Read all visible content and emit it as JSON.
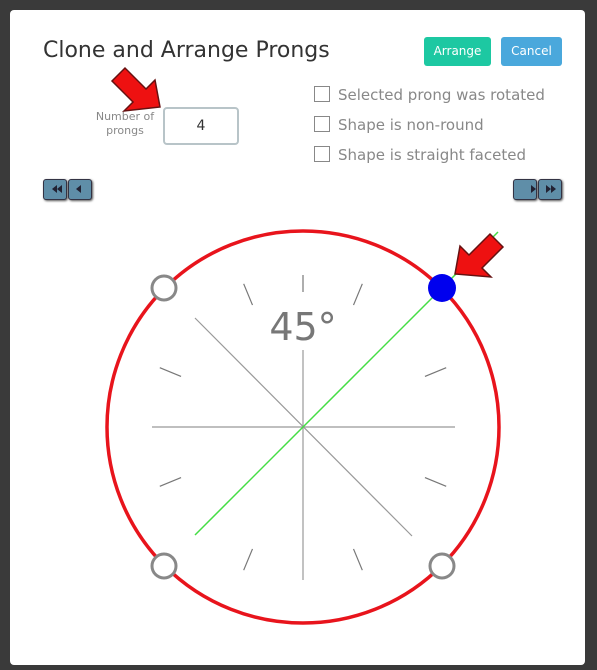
{
  "dialog": {
    "title": "Clone and Arrange Prongs",
    "buttons": {
      "arrange": "Arrange",
      "cancel": "Cancel"
    },
    "prong_count": {
      "label": "Number of prongs",
      "value": "4"
    },
    "options": [
      "Selected prong was rotated",
      "Shape is non-round",
      "Shape is straight faceted"
    ],
    "angle_label": "45°"
  }
}
